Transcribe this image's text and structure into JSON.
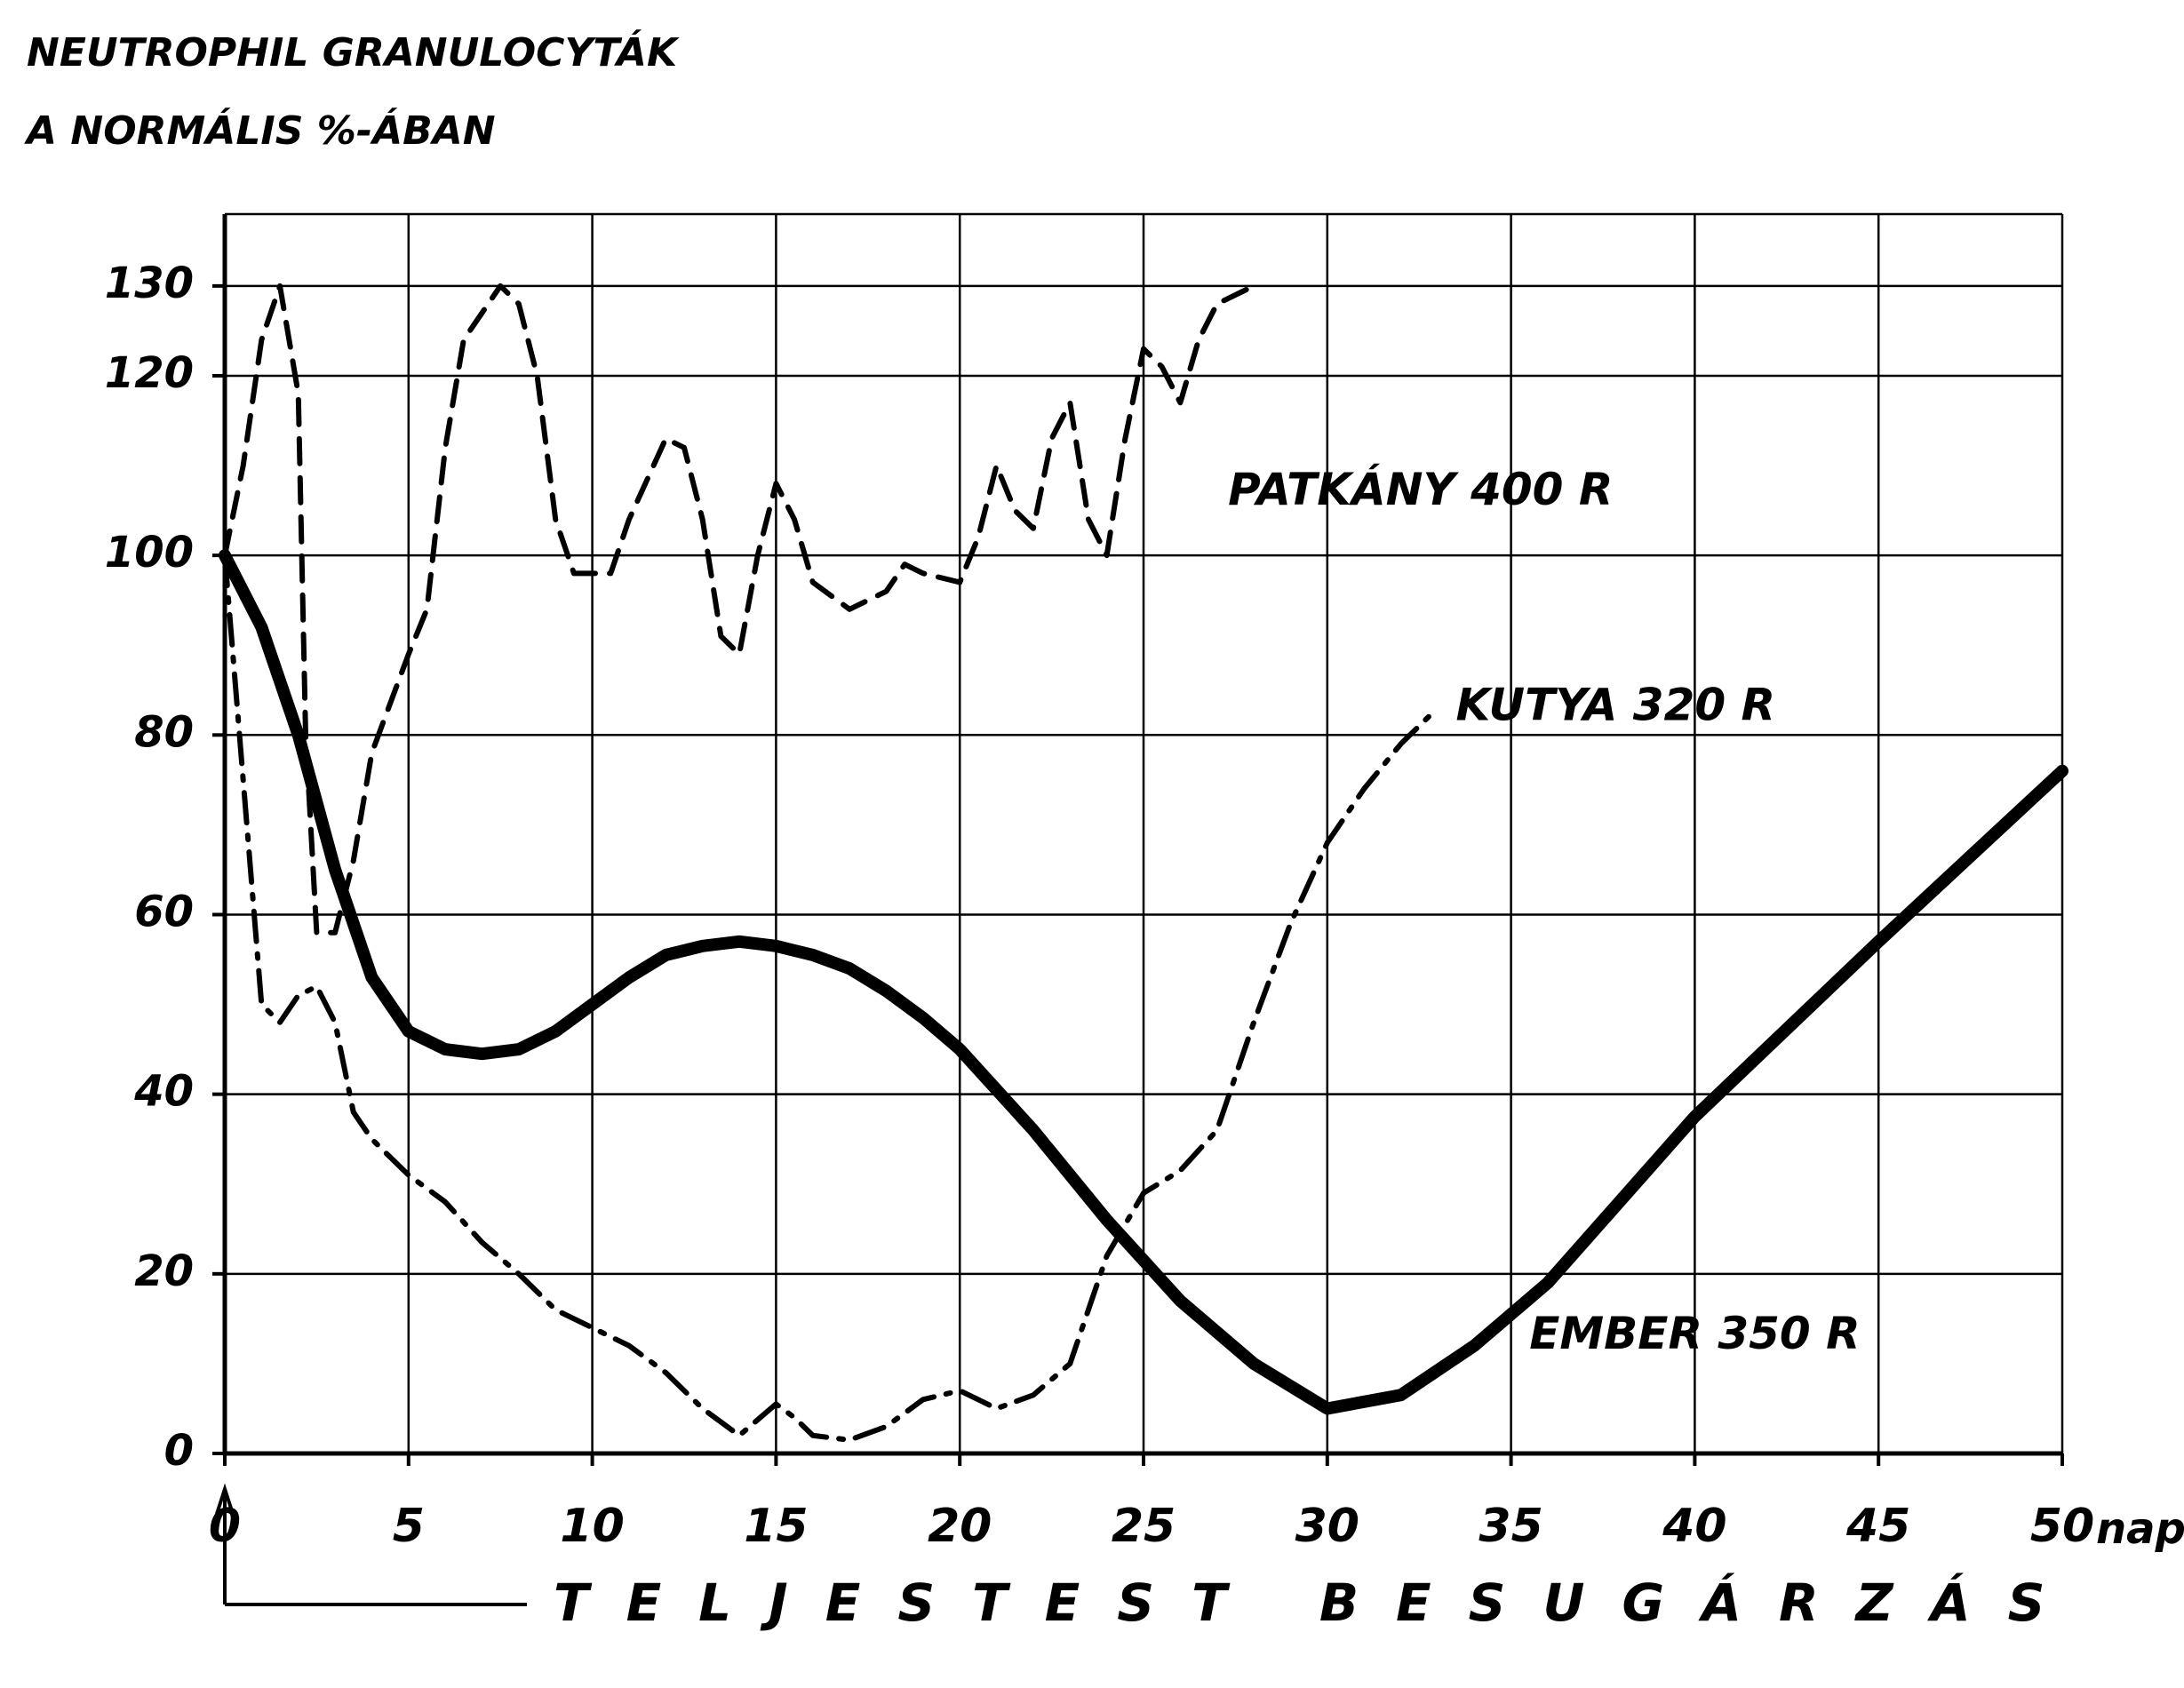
{
  "chart_data": {
    "type": "line",
    "title": [
      "NEUTROPHIL GRANULOCYTÁK",
      "A NORMÁLIS %-ÁBAN"
    ],
    "xlabel": "nap",
    "annotation": "TELJESTEST BESUGÁRZÁS",
    "xlim": [
      0,
      50
    ],
    "xticks": [
      0,
      5,
      10,
      15,
      20,
      25,
      30,
      35,
      40,
      45,
      50
    ],
    "ylim": [
      0,
      138
    ],
    "yticks": [
      0,
      20,
      40,
      60,
      80,
      100,
      120,
      130
    ],
    "grid": true,
    "series": [
      {
        "name": "PATKÁNY 400 R",
        "color": "#000000",
        "linestyle": "dashed",
        "x": [
          0,
          0.5,
          1,
          1.5,
          2,
          2.2,
          2.5,
          3,
          3.5,
          4,
          5,
          5.5,
          6,
          6.5,
          7.5,
          8,
          8.5,
          9,
          9.5,
          10.5,
          11,
          12,
          12.5,
          13,
          13.5,
          14,
          14.5,
          15,
          15.5,
          16,
          17,
          18,
          18.5,
          19,
          20,
          20.5,
          21,
          21.5,
          22,
          22.5,
          23,
          23.5,
          24,
          24.5,
          25,
          25.5,
          26,
          26.5,
          27,
          28
        ],
        "values": [
          100,
          110,
          124,
          130,
          118,
          80,
          58,
          58,
          66,
          78,
          89,
          94,
          112,
          124,
          130,
          128,
          120,
          104,
          98,
          98,
          104,
          113,
          112,
          104,
          91,
          89,
          100,
          108,
          104,
          97,
          94,
          96,
          99,
          98,
          97,
          102,
          110,
          105,
          103,
          113,
          117,
          104,
          100,
          113,
          123,
          121,
          117,
          124,
          128,
          130
        ]
      },
      {
        "name": "KUTYA 320 R",
        "color": "#000000",
        "linestyle": "dashdot",
        "x": [
          0,
          0.5,
          1,
          1.5,
          2,
          2.5,
          3,
          3.5,
          4,
          5,
          6,
          7,
          8,
          9,
          10,
          11,
          12,
          13,
          14,
          15,
          15.5,
          16,
          17,
          18,
          19,
          20,
          21,
          22,
          23,
          24,
          25,
          26,
          27,
          28,
          29,
          30,
          31,
          32,
          33
        ],
        "values": [
          100,
          75,
          50,
          48,
          51,
          52,
          48,
          38,
          35,
          31,
          28,
          23.5,
          20,
          16,
          14,
          12,
          9,
          5,
          2,
          5.5,
          4,
          2,
          1.5,
          3,
          6,
          7,
          5,
          6.5,
          10,
          22,
          29,
          31.5,
          36,
          48,
          59,
          68,
          74,
          79,
          83
        ]
      },
      {
        "name": "EMBER 350 R",
        "color": "#000000",
        "linestyle": "solid",
        "x": [
          0,
          1,
          2,
          3,
          4,
          5,
          6,
          7,
          8,
          9,
          10,
          11,
          12,
          13,
          14,
          15,
          16,
          17,
          18,
          19,
          20,
          22,
          24,
          26,
          28,
          30,
          32,
          34,
          36,
          40,
          45,
          50
        ],
        "values": [
          100,
          92,
          80,
          65,
          53,
          47,
          45,
          44.5,
          45,
          47,
          50,
          53,
          55.5,
          56.5,
          57,
          56.5,
          55.5,
          54,
          51.5,
          48.5,
          45,
          36,
          26,
          17,
          10,
          5,
          6.5,
          12,
          19,
          37.5,
          57,
          76
        ]
      }
    ]
  }
}
